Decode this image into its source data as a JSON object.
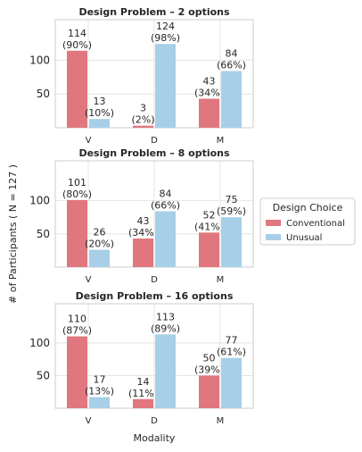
{
  "chart_data": {
    "type": "bar",
    "ylabel": "# of Participants ( N = 127 )",
    "xlabel": "Modality",
    "categories": [
      "V",
      "D",
      "M"
    ],
    "ylim": [
      0,
      160
    ],
    "yticks": [
      50,
      100
    ],
    "legend": {
      "title": "Design Choice",
      "placement": "right",
      "entries": [
        "Conventional",
        "Unusual"
      ]
    },
    "colors": {
      "Conventional": "#e0777e",
      "Unusual": "#a7cfe8"
    },
    "panels": [
      {
        "title": "Design Problem – 2 options",
        "series": [
          {
            "name": "Conventional",
            "values": [
              114,
              3,
              43
            ],
            "labels": [
              "(90%)",
              "(2%)",
              "(34%)"
            ]
          },
          {
            "name": "Unusual",
            "values": [
              13,
              124,
              84
            ],
            "labels": [
              "(10%)",
              "(98%)",
              "(66%)"
            ]
          }
        ]
      },
      {
        "title": "Design Problem – 8 options",
        "series": [
          {
            "name": "Conventional",
            "values": [
              101,
              43,
              52
            ],
            "labels": [
              "(80%)",
              "(34%)",
              "(41%)"
            ]
          },
          {
            "name": "Unusual",
            "values": [
              26,
              84,
              75
            ],
            "labels": [
              "(20%)",
              "(66%)",
              "(59%)"
            ]
          }
        ]
      },
      {
        "title": "Design Problem – 16 options",
        "series": [
          {
            "name": "Conventional",
            "values": [
              110,
              14,
              50
            ],
            "labels": [
              "(87%)",
              "(11%)",
              "(39%)"
            ]
          },
          {
            "name": "Unusual",
            "values": [
              17,
              113,
              77
            ],
            "labels": [
              "(13%)",
              "(89%)",
              "(61%)"
            ]
          }
        ]
      }
    ]
  }
}
